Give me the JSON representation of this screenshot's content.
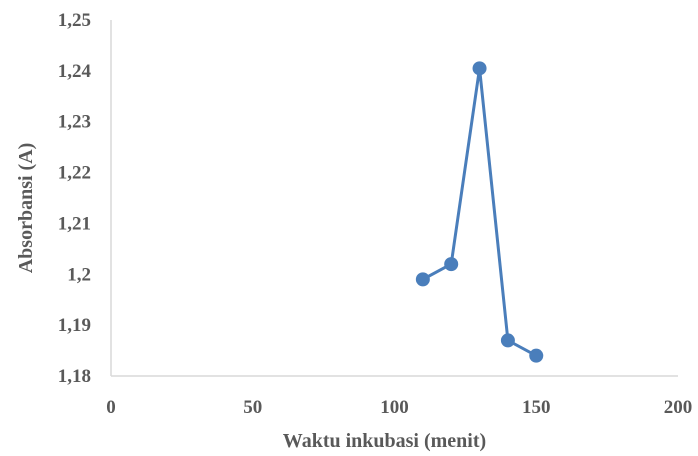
{
  "chart_data": {
    "type": "scatter",
    "title": "",
    "xlabel": "Waktu inkubasi (menit)",
    "ylabel": "Absorbansi (A)",
    "xlim": [
      0,
      200
    ],
    "ylim": [
      1.18,
      1.25
    ],
    "x_ticks": [
      {
        "value": 0,
        "label": "0"
      },
      {
        "value": 50,
        "label": "50"
      },
      {
        "value": 100,
        "label": "100"
      },
      {
        "value": 150,
        "label": "150"
      },
      {
        "value": 200,
        "label": "200"
      }
    ],
    "y_ticks": [
      {
        "value": 1.18,
        "label": "1,18"
      },
      {
        "value": 1.19,
        "label": "1,19"
      },
      {
        "value": 1.2,
        "label": "1,2"
      },
      {
        "value": 1.21,
        "label": "1,21"
      },
      {
        "value": 1.22,
        "label": "1,22"
      },
      {
        "value": 1.23,
        "label": "1,23"
      },
      {
        "value": 1.24,
        "label": "1,24"
      },
      {
        "value": 1.25,
        "label": "1,25"
      }
    ],
    "grid": false,
    "legend": "none",
    "series": [
      {
        "color": "#4a7ebb",
        "marker": "circle",
        "line": true,
        "points": [
          {
            "x": 110,
            "y": 1.199
          },
          {
            "x": 120,
            "y": 1.202
          },
          {
            "x": 130,
            "y": 1.2405
          },
          {
            "x": 140,
            "y": 1.187
          },
          {
            "x": 150,
            "y": 1.184
          }
        ]
      }
    ]
  }
}
